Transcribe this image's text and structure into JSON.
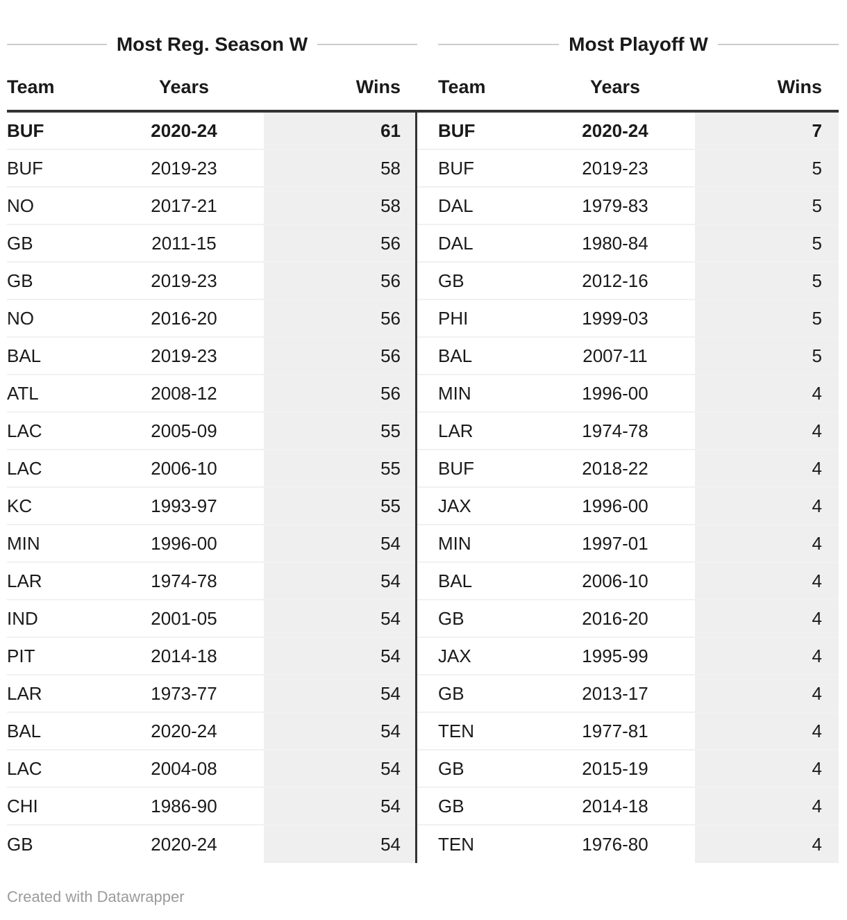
{
  "chart_data": [
    {
      "type": "table",
      "title": "Most Reg. Season W",
      "columns": [
        "Team",
        "Years",
        "Wins"
      ],
      "highlight_first_row": true,
      "wins_column_shaded": true,
      "rows": [
        [
          "BUF",
          "2020-24",
          61
        ],
        [
          "BUF",
          "2019-23",
          58
        ],
        [
          "NO",
          "2017-21",
          58
        ],
        [
          "GB",
          "2011-15",
          56
        ],
        [
          "GB",
          "2019-23",
          56
        ],
        [
          "NO",
          "2016-20",
          56
        ],
        [
          "BAL",
          "2019-23",
          56
        ],
        [
          "ATL",
          "2008-12",
          56
        ],
        [
          "LAC",
          "2005-09",
          55
        ],
        [
          "LAC",
          "2006-10",
          55
        ],
        [
          "KC",
          "1993-97",
          55
        ],
        [
          "MIN",
          "1996-00",
          54
        ],
        [
          "LAR",
          "1974-78",
          54
        ],
        [
          "IND",
          "2001-05",
          54
        ],
        [
          "PIT",
          "2014-18",
          54
        ],
        [
          "LAR",
          "1973-77",
          54
        ],
        [
          "BAL",
          "2020-24",
          54
        ],
        [
          "LAC",
          "2004-08",
          54
        ],
        [
          "CHI",
          "1986-90",
          54
        ],
        [
          "GB",
          "2020-24",
          54
        ]
      ]
    },
    {
      "type": "table",
      "title": "Most Playoff W",
      "columns": [
        "Team",
        "Years",
        "Wins"
      ],
      "highlight_first_row": true,
      "wins_column_shaded": true,
      "rows": [
        [
          "BUF",
          "2020-24",
          7
        ],
        [
          "BUF",
          "2019-23",
          5
        ],
        [
          "DAL",
          "1979-83",
          5
        ],
        [
          "DAL",
          "1980-84",
          5
        ],
        [
          "GB",
          "2012-16",
          5
        ],
        [
          "PHI",
          "1999-03",
          5
        ],
        [
          "BAL",
          "2007-11",
          5
        ],
        [
          "MIN",
          "1996-00",
          4
        ],
        [
          "LAR",
          "1974-78",
          4
        ],
        [
          "BUF",
          "2018-22",
          4
        ],
        [
          "JAX",
          "1996-00",
          4
        ],
        [
          "MIN",
          "1997-01",
          4
        ],
        [
          "BAL",
          "2006-10",
          4
        ],
        [
          "GB",
          "2016-20",
          4
        ],
        [
          "JAX",
          "1995-99",
          4
        ],
        [
          "GB",
          "2013-17",
          4
        ],
        [
          "TEN",
          "1977-81",
          4
        ],
        [
          "GB",
          "2015-19",
          4
        ],
        [
          "GB",
          "2014-18",
          4
        ],
        [
          "TEN",
          "1976-80",
          4
        ]
      ]
    }
  ],
  "footer": {
    "credit": "Created with Datawrapper"
  },
  "colors": {
    "text": "#1a1a1a",
    "accent_dark": "#333333",
    "wins_column_bg": "#efefef",
    "row_separator": "rgba(0,0,0,0.055)",
    "title_line": "#cccccc",
    "footer_text": "#9b9b9b"
  }
}
